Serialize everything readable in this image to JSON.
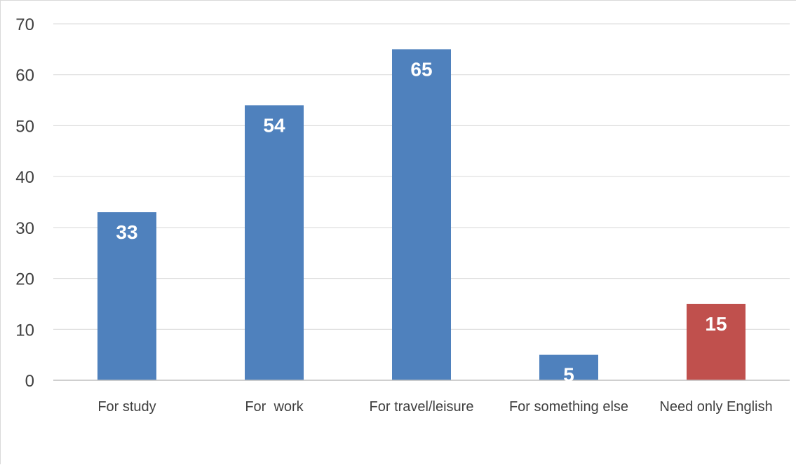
{
  "chart_data": {
    "type": "bar",
    "categories": [
      "For study",
      "For  work",
      "For travel/leisure",
      "For something else",
      "Need only English"
    ],
    "values": [
      33,
      54,
      65,
      5,
      15
    ],
    "bar_colors": [
      "#4f81bd",
      "#4f81bd",
      "#4f81bd",
      "#4f81bd",
      "#c0504d"
    ],
    "data_label_color": "#ffffff",
    "gridline_color": "#d9d9d9",
    "axis_color": "#bfbfbf",
    "title": "",
    "xlabel": "",
    "ylabel": "",
    "ylim": [
      0,
      70
    ],
    "yticks": [
      0,
      10,
      20,
      30,
      40,
      50,
      60,
      70
    ],
    "grid": true,
    "legend": "none"
  }
}
